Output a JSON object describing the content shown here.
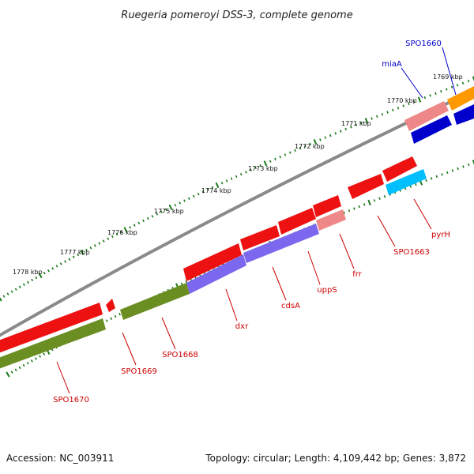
{
  "title": "Ruegeria pomeroyi DSS-3, complete genome",
  "footer": {
    "accession": "Accession: NC_003911",
    "summary": "Topology: circular; Length: 4,109,442 bp; Genes: 3,872"
  },
  "colors": {
    "background": "#ffffff",
    "backbone": "#8a8a8a",
    "tick": "#1a7a1a",
    "red": "#ee1111",
    "pink": "#ee8888",
    "olive": "#6b8e23",
    "purple": "#7b68ee",
    "cyan": "#00bfff",
    "blue": "#0000cc",
    "orange": "#ff9900",
    "label_red": "#cc0000",
    "label_blue": "#0000cc"
  },
  "ticks": [
    {
      "label": "1769 kbp"
    },
    {
      "label": "1770 kbp"
    },
    {
      "label": "1771 kbp"
    },
    {
      "label": "1772 kbp"
    },
    {
      "label": "1773 kbp"
    },
    {
      "label": "1774 kbp"
    },
    {
      "label": "1775 kbp"
    },
    {
      "label": "1776 kbp"
    },
    {
      "label": "1777 kbp"
    },
    {
      "label": "1778 kbp"
    }
  ],
  "genes": [
    {
      "name": "SPO1660",
      "label_color": "blue"
    },
    {
      "name": "miaA",
      "label_color": "blue"
    },
    {
      "name": "pyrH",
      "label_color": "red"
    },
    {
      "name": "SPO1663",
      "label_color": "red"
    },
    {
      "name": "frr",
      "label_color": "red"
    },
    {
      "name": "uppS",
      "label_color": "red"
    },
    {
      "name": "cdsA",
      "label_color": "red"
    },
    {
      "name": "dxr",
      "label_color": "red"
    },
    {
      "name": "SPO1668",
      "label_color": "red"
    },
    {
      "name": "SPO1669",
      "label_color": "red"
    },
    {
      "name": "SPO1670",
      "label_color": "red"
    }
  ]
}
